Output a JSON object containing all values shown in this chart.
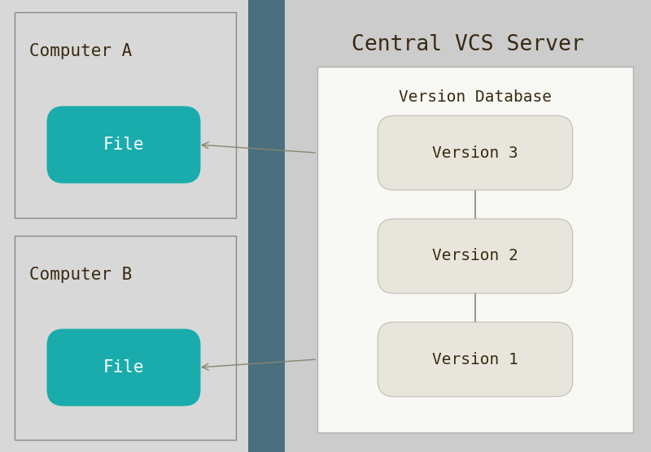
{
  "fig_width": 8.0,
  "fig_height": 5.56,
  "dpi": 100,
  "bg_color": "#c0c0c0",
  "left_bg_color": "#d8d8d8",
  "center_strip_color": "#4a7080",
  "right_bg_color": "#cccccc",
  "comp_box_color": "#d8d8d8",
  "comp_box_border": "#888888",
  "version_db_bg": "#f8f8f4",
  "version_db_border": "#b0b0b0",
  "version_box_color": "#e8e6dc",
  "version_box_border": "#c0bcb0",
  "file_box_color": "#1aacac",
  "file_text_color": "#ffffff",
  "label_color": "#3a2a14",
  "version_text_color": "#3a2a14",
  "arrow_color": "#8a8472",
  "connector_color": "#8a8472",
  "title_text": "Central VCS Server",
  "comp_a_text": "Computer A",
  "comp_b_text": "Computer B",
  "version_db_text": "Version Database",
  "file_text": "File",
  "versions": [
    "Version 3",
    "Version 2",
    "Version 1"
  ],
  "title_fontsize": 19,
  "label_fontsize": 15,
  "file_fontsize": 15,
  "version_fontsize": 14
}
